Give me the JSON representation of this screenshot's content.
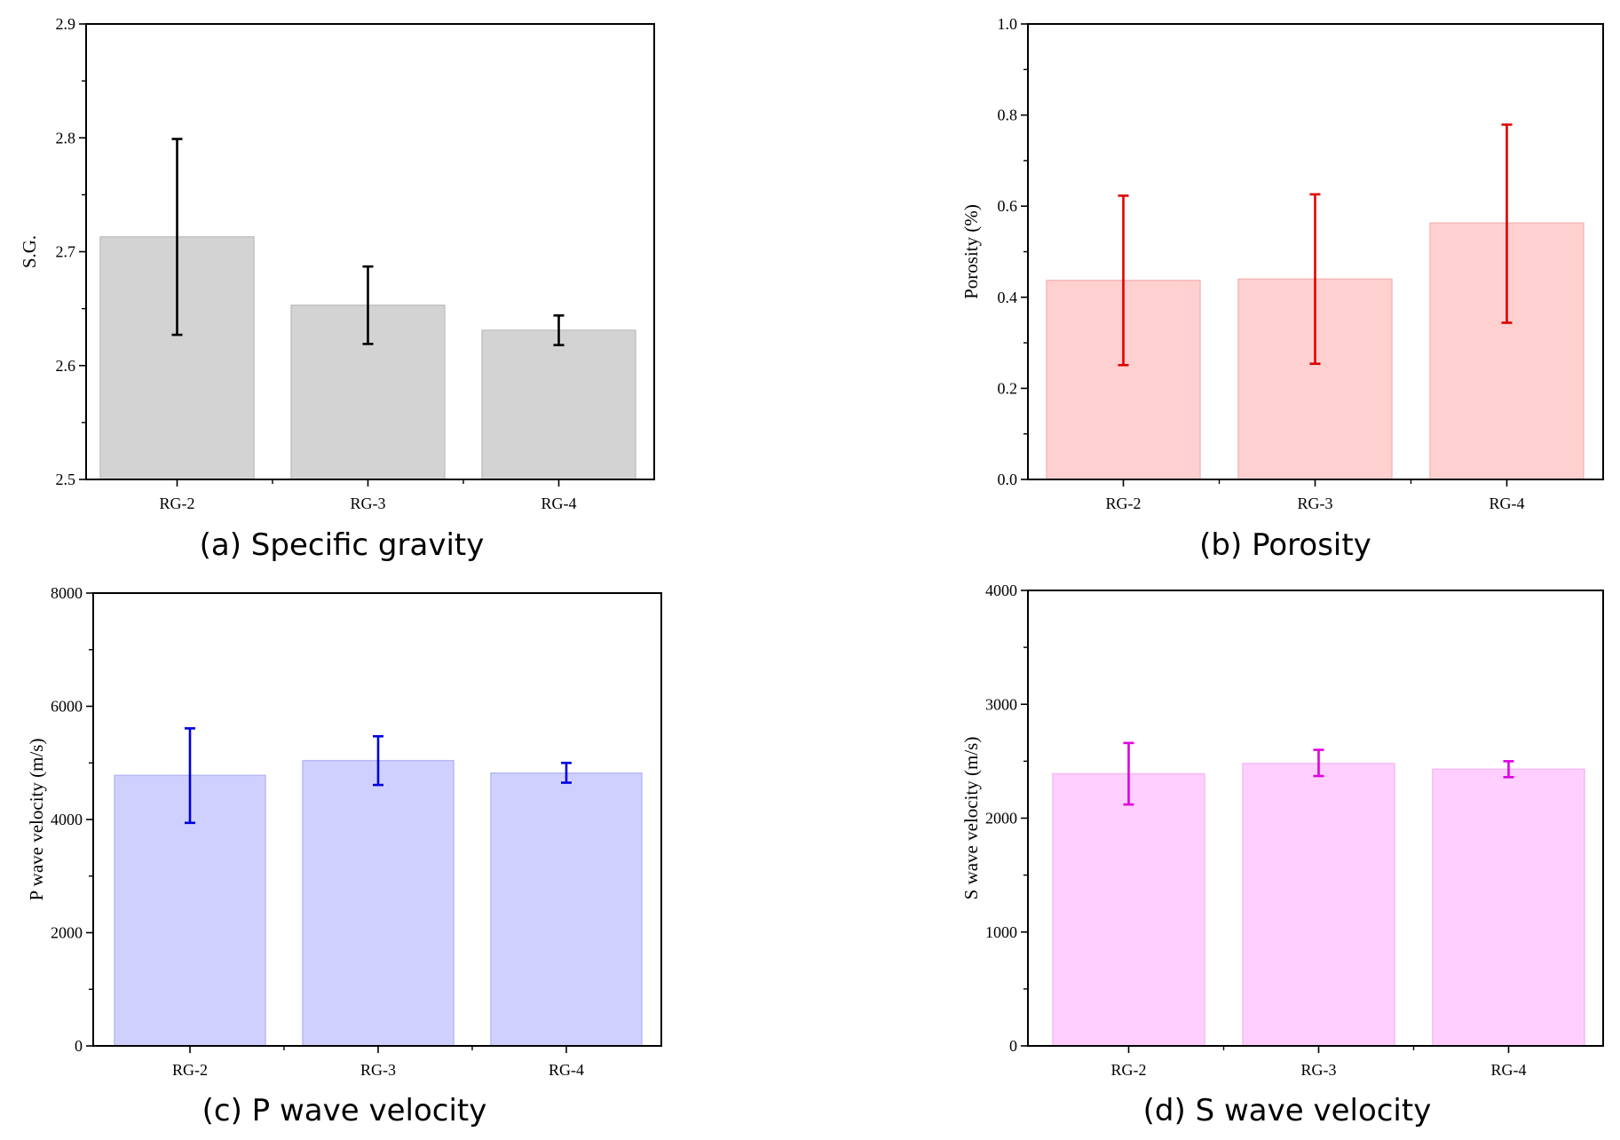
{
  "chart_data": [
    {
      "type": "bar",
      "title": "(a) Specific gravity",
      "xlabel": "",
      "ylabel": "S.G.",
      "categories": [
        "RG-2",
        "RG-3",
        "RG-4"
      ],
      "values": [
        2.713,
        2.653,
        2.631
      ],
      "error_low": [
        2.627,
        2.619,
        2.618
      ],
      "error_high": [
        2.799,
        2.687,
        2.644
      ],
      "ylim": [
        2.5,
        2.9
      ],
      "yticks": [
        2.5,
        2.6,
        2.7,
        2.8,
        2.9
      ],
      "ytick_labels": [
        "2.5",
        "2.6",
        "2.7",
        "2.8",
        "2.9"
      ],
      "minor_ticks": 2,
      "bar_color": "#d3d3d3",
      "bar_edge": "#c2c2c2",
      "error_color": "#000000"
    },
    {
      "type": "bar",
      "title": "(b) Porosity",
      "xlabel": "",
      "ylabel": "Porosity (%)",
      "categories": [
        "RG-2",
        "RG-3",
        "RG-4"
      ],
      "values": [
        0.437,
        0.44,
        0.563
      ],
      "error_low": [
        0.251,
        0.254,
        0.344
      ],
      "error_high": [
        0.623,
        0.626,
        0.779
      ],
      "ylim": [
        0,
        1.0
      ],
      "yticks": [
        0,
        0.2,
        0.4,
        0.6,
        0.8,
        1.0
      ],
      "ytick_labels": [
        "0.0",
        "0.2",
        "0.4",
        "0.6",
        "0.8",
        "1.0"
      ],
      "minor_ticks": 2,
      "bar_color": "#ffd0d0",
      "bar_edge": "#f5b8b8",
      "error_color": "#e00000"
    },
    {
      "type": "bar",
      "title": "(c) P wave velocity",
      "xlabel": "",
      "ylabel": "P wave velocity (m/s)",
      "categories": [
        "RG-2",
        "RG-3",
        "RG-4"
      ],
      "values": [
        4780,
        5040,
        4820
      ],
      "error_low": [
        3940,
        4610,
        4650
      ],
      "error_high": [
        5610,
        5470,
        5000
      ],
      "ylim": [
        0,
        8000
      ],
      "yticks": [
        0,
        2000,
        4000,
        6000,
        8000
      ],
      "ytick_labels": [
        "0",
        "2000",
        "4000",
        "6000",
        "8000"
      ],
      "minor_ticks": 2,
      "bar_color": "#d0d0ff",
      "bar_edge": "#b9b9f5",
      "error_color": "#0000e0"
    },
    {
      "type": "bar",
      "title": "(d) S wave velocity",
      "xlabel": "",
      "ylabel": "S wave velocity (m/s)",
      "categories": [
        "RG-2",
        "RG-3",
        "RG-4"
      ],
      "values": [
        2390,
        2480,
        2430
      ],
      "error_low": [
        2120,
        2370,
        2360
      ],
      "error_high": [
        2660,
        2600,
        2500
      ],
      "ylim": [
        0,
        4000
      ],
      "yticks": [
        0,
        1000,
        2000,
        3000,
        4000
      ],
      "ytick_labels": [
        "0",
        "1000",
        "2000",
        "3000",
        "4000"
      ],
      "minor_ticks": 2,
      "bar_color": "#ffd0ff",
      "bar_edge": "#f5b8f5",
      "error_color": "#e000e0"
    }
  ]
}
